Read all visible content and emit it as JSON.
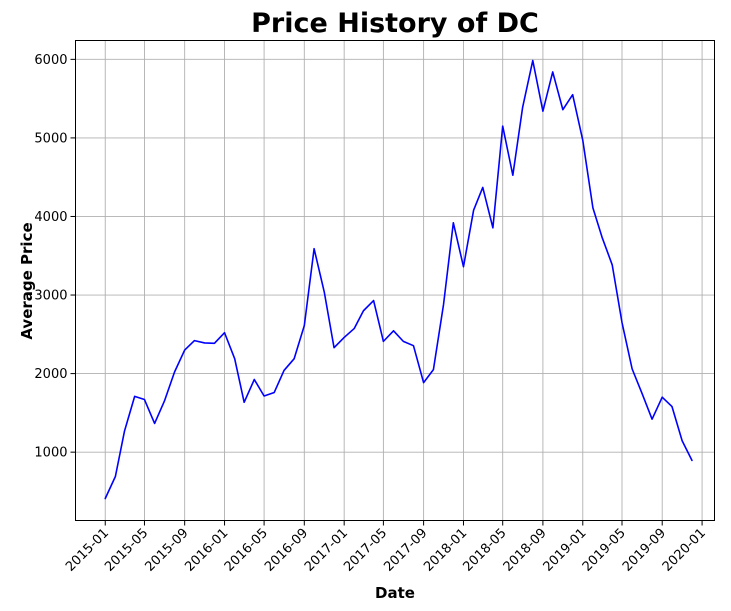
{
  "chart_data": {
    "type": "line",
    "title": "Price History of DC",
    "xlabel": "Date",
    "ylabel": "Average Price",
    "x_ticks": [
      "2015-01",
      "2015-05",
      "2015-09",
      "2016-01",
      "2016-05",
      "2016-09",
      "2017-01",
      "2017-05",
      "2017-09",
      "2018-01",
      "2018-05",
      "2018-09",
      "2019-01",
      "2019-05",
      "2019-09",
      "2020-01"
    ],
    "y_ticks": [
      1000,
      2000,
      3000,
      4000,
      5000,
      6000
    ],
    "xlim": [
      "2014-10-02",
      "2020-02-08"
    ],
    "ylim": [
      130,
      6240
    ],
    "grid": true,
    "line_color": "#0000ff",
    "series": [
      {
        "x": [
          "2015-01",
          "2015-02",
          "2015-03",
          "2015-04",
          "2015-05",
          "2015-06",
          "2015-07",
          "2015-08",
          "2015-09",
          "2015-10",
          "2015-11",
          "2015-12",
          "2016-01",
          "2016-02",
          "2016-03",
          "2016-04",
          "2016-05",
          "2016-06",
          "2016-07",
          "2016-08",
          "2016-09",
          "2016-10",
          "2016-11",
          "2016-12",
          "2017-01",
          "2017-02",
          "2017-03",
          "2017-04",
          "2017-05",
          "2017-06",
          "2017-07",
          "2017-08",
          "2017-09",
          "2017-10",
          "2017-11",
          "2017-12",
          "2018-01",
          "2018-02",
          "2018-03",
          "2018-04",
          "2018-05",
          "2018-06",
          "2018-07",
          "2018-08",
          "2018-09",
          "2018-10",
          "2018-11",
          "2018-12",
          "2019-01",
          "2019-02",
          "2019-03",
          "2019-04",
          "2019-05",
          "2019-06",
          "2019-07",
          "2019-08",
          "2019-09",
          "2019-10",
          "2019-11",
          "2019-12"
        ],
        "values": [
          410,
          690,
          1270,
          1710,
          1670,
          1365,
          1650,
          2020,
          2300,
          2420,
          2390,
          2385,
          2520,
          2190,
          1635,
          1925,
          1715,
          1760,
          2040,
          2190,
          2610,
          3590,
          3040,
          2330,
          2460,
          2575,
          2800,
          2930,
          2410,
          2545,
          2410,
          2355,
          1885,
          2050,
          2880,
          3920,
          3360,
          4080,
          4370,
          3855,
          5150,
          4525,
          5390,
          5985,
          5340,
          5840,
          5360,
          5550,
          4970,
          4110,
          3735,
          3385,
          2650,
          2060,
          1750,
          1420,
          1700,
          1580,
          1145,
          895
        ]
      }
    ]
  }
}
